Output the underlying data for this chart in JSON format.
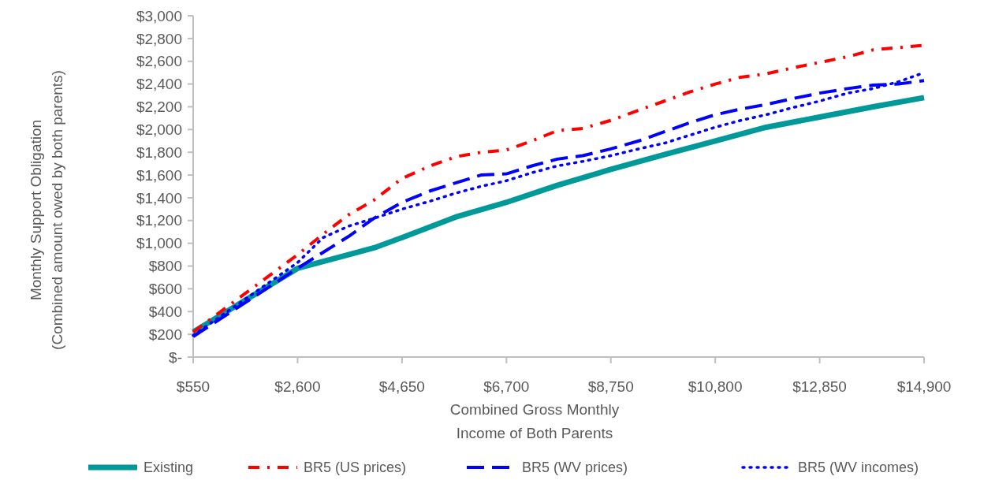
{
  "chart_data": {
    "type": "line",
    "xlabel": "Combined Gross Monthly\nIncome of Both Parents",
    "ylabel": "Monthly  Support Obligation\n(Combined amount owed by both parents)",
    "xlim": [
      550,
      14900
    ],
    "xticks": [
      {
        "value": 550,
        "label": "$550"
      },
      {
        "value": 2600,
        "label": "$2,600"
      },
      {
        "value": 4650,
        "label": "$4,650"
      },
      {
        "value": 6700,
        "label": "$6,700"
      },
      {
        "value": 8750,
        "label": "$8,750"
      },
      {
        "value": 10800,
        "label": "$10,800"
      },
      {
        "value": 12850,
        "label": "$12,850"
      },
      {
        "value": 14900,
        "label": "$14,900"
      }
    ],
    "ylim": [
      0,
      3000
    ],
    "yticks": [
      {
        "value": 0,
        "label": "$-"
      },
      {
        "value": 200,
        "label": "$200"
      },
      {
        "value": 400,
        "label": "$400"
      },
      {
        "value": 600,
        "label": "$600"
      },
      {
        "value": 800,
        "label": "$800"
      },
      {
        "value": 1000,
        "label": "$1,000"
      },
      {
        "value": 1200,
        "label": "$1,200"
      },
      {
        "value": 1400,
        "label": "$1,400"
      },
      {
        "value": 1600,
        "label": "$1,600"
      },
      {
        "value": 1800,
        "label": "$1,800"
      },
      {
        "value": 2000,
        "label": "$2,000"
      },
      {
        "value": 2200,
        "label": "$2,200"
      },
      {
        "value": 2400,
        "label": "$2,400"
      },
      {
        "value": 2600,
        "label": "$2,600"
      },
      {
        "value": 2800,
        "label": "$2,800"
      },
      {
        "value": 3000,
        "label": "$3,000"
      }
    ],
    "grid": false,
    "legend": "bottom",
    "marker": "none",
    "series": [
      {
        "name": "Existing",
        "color": "#009999",
        "line_style": "solid",
        "x": [
          550,
          1575,
          2600,
          3600,
          4100,
          4650,
          5700,
          6700,
          7700,
          8750,
          9800,
          10800,
          11800,
          12850,
          13900,
          14900
        ],
        "values": [
          220,
          500,
          780,
          900,
          960,
          1050,
          1230,
          1360,
          1510,
          1650,
          1780,
          1900,
          2020,
          2110,
          2200,
          2280
        ]
      },
      {
        "name": "BR5 (US prices)",
        "color": "#ff0000",
        "line_style": "dashdot",
        "x": [
          550,
          1575,
          2600,
          3100,
          3600,
          4100,
          4650,
          5200,
          5700,
          6200,
          6700,
          7200,
          7700,
          8200,
          8750,
          9300,
          9800,
          10300,
          10800,
          11300,
          11800,
          12300,
          12850,
          13400,
          13900,
          14400,
          14900
        ],
        "values": [
          220,
          560,
          900,
          1080,
          1250,
          1380,
          1570,
          1680,
          1760,
          1800,
          1820,
          1900,
          1990,
          2010,
          2080,
          2170,
          2250,
          2330,
          2400,
          2460,
          2490,
          2540,
          2590,
          2640,
          2700,
          2720,
          2740
        ]
      },
      {
        "name": "BR5 (WV prices)",
        "color": "#0000ff",
        "line_style": "dashed",
        "x": [
          550,
          1575,
          2600,
          3100,
          3600,
          4100,
          4650,
          5200,
          5700,
          6200,
          6700,
          7200,
          7700,
          8200,
          8750,
          9300,
          9800,
          10300,
          10800,
          11300,
          11800,
          12300,
          12850,
          13400,
          13900,
          14400,
          14900
        ],
        "values": [
          180,
          480,
          780,
          920,
          1060,
          1220,
          1360,
          1460,
          1530,
          1600,
          1610,
          1680,
          1740,
          1770,
          1830,
          1900,
          1980,
          2060,
          2130,
          2180,
          2220,
          2270,
          2320,
          2360,
          2390,
          2400,
          2430
        ]
      },
      {
        "name": "BR5 (WV incomes)",
        "color": "#0000ff",
        "line_style": "dotted",
        "x": [
          550,
          1575,
          2600,
          3100,
          3600,
          4100,
          4650,
          5200,
          5700,
          6200,
          6700,
          7200,
          7700,
          8200,
          8750,
          9300,
          9800,
          10300,
          10800,
          11300,
          11800,
          12300,
          12850,
          13400,
          13900,
          14400,
          14900
        ],
        "values": [
          190,
          510,
          830,
          1050,
          1150,
          1220,
          1300,
          1370,
          1440,
          1500,
          1550,
          1620,
          1680,
          1720,
          1770,
          1830,
          1880,
          1950,
          2020,
          2080,
          2130,
          2190,
          2250,
          2320,
          2360,
          2420,
          2500
        ]
      }
    ]
  }
}
